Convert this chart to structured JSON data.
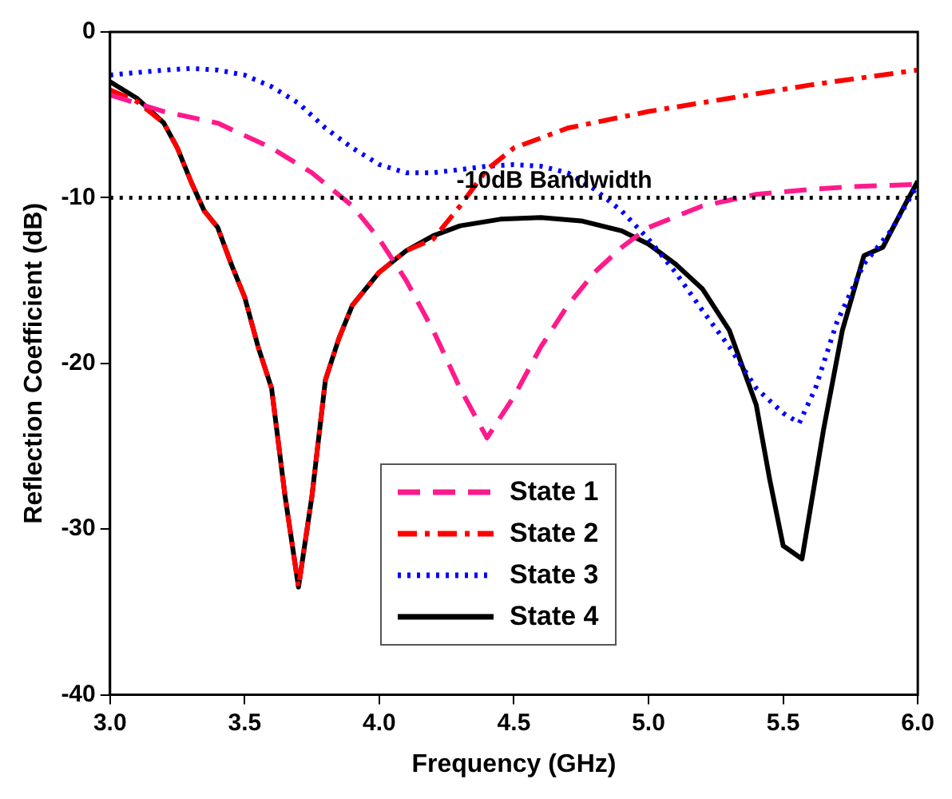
{
  "chart_data": {
    "type": "line",
    "xlabel": "Frequency (GHz)",
    "ylabel": "Reflection Coefficient (dB)",
    "xlim": [
      3,
      6
    ],
    "ylim": [
      -40,
      0
    ],
    "xticks": [
      {
        "value": 3,
        "label": "3.0"
      },
      {
        "value": 3.5,
        "label": "3.5"
      },
      {
        "value": 4,
        "label": "4.0"
      },
      {
        "value": 4.5,
        "label": "4.5"
      },
      {
        "value": 5,
        "label": "5.0"
      },
      {
        "value": 5.5,
        "label": "5.5"
      },
      {
        "value": 6,
        "label": "6.0"
      }
    ],
    "yticks": [
      -40,
      -30,
      -20,
      -10,
      0
    ],
    "grid": false,
    "legend": "bottom",
    "marker": "none",
    "ref_lines": [
      {
        "axis": "y",
        "value": -10,
        "label": "-10dB Bandwidth",
        "color": "#000000",
        "line_style": "dotted"
      }
    ],
    "series": [
      {
        "name": "State 1",
        "color": "#ff1a8c",
        "line_style": "dashed",
        "x": [
          3.0,
          3.2,
          3.4,
          3.6,
          3.75,
          3.9,
          4.0,
          4.1,
          4.2,
          4.3,
          4.4,
          4.5,
          4.6,
          4.7,
          4.8,
          4.9,
          5.0,
          5.2,
          5.4,
          5.6,
          5.8,
          6.0
        ],
        "values": [
          -3.8,
          -4.8,
          -5.5,
          -7,
          -8.5,
          -10.5,
          -12.5,
          -15,
          -18,
          -21.5,
          -24.5,
          -22,
          -19,
          -16.5,
          -14.5,
          -13,
          -11.8,
          -10.5,
          -9.8,
          -9.5,
          -9.3,
          -9.2
        ]
      },
      {
        "name": "State 2",
        "color": "#ff0000",
        "line_style": "dashdot",
        "x": [
          3.0,
          3.1,
          3.2,
          3.25,
          3.3,
          3.35,
          3.4,
          3.45,
          3.5,
          3.55,
          3.6,
          3.65,
          3.7,
          3.75,
          3.8,
          3.85,
          3.9,
          4.0,
          4.1,
          4.2,
          4.3,
          4.4,
          4.5,
          4.7,
          5.0,
          5.3,
          5.6,
          6.0
        ],
        "values": [
          -3.5,
          -4.2,
          -5.5,
          -7,
          -9,
          -10.8,
          -11.8,
          -14,
          -16,
          -19,
          -21.5,
          -28,
          -33.5,
          -28,
          -21,
          -18.5,
          -16.5,
          -14.5,
          -13.2,
          -12.5,
          -10.5,
          -8.3,
          -7,
          -5.8,
          -4.8,
          -4,
          -3.2,
          -2.3
        ]
      },
      {
        "name": "State 3",
        "color": "#0000ff",
        "line_style": "dotted",
        "x": [
          3.0,
          3.2,
          3.3,
          3.4,
          3.5,
          3.6,
          3.7,
          3.8,
          3.9,
          4.0,
          4.1,
          4.2,
          4.3,
          4.4,
          4.5,
          4.6,
          4.7,
          4.8,
          4.9,
          5.0,
          5.1,
          5.2,
          5.3,
          5.4,
          5.5,
          5.56,
          5.62,
          5.7,
          5.8,
          5.9,
          6.0
        ],
        "values": [
          -2.6,
          -2.3,
          -2.2,
          -2.3,
          -2.6,
          -3.3,
          -4.3,
          -5.8,
          -7,
          -8,
          -8.5,
          -8.5,
          -8.3,
          -8.1,
          -8,
          -8.1,
          -8.5,
          -9.5,
          -10.8,
          -12.5,
          -14.5,
          -16.8,
          -19,
          -21.5,
          -23,
          -23.6,
          -21.5,
          -17.5,
          -14,
          -12,
          -9.2
        ]
      },
      {
        "name": "State 4",
        "color": "#000000",
        "line_style": "solid",
        "x": [
          3.0,
          3.1,
          3.2,
          3.25,
          3.3,
          3.35,
          3.4,
          3.45,
          3.5,
          3.55,
          3.6,
          3.65,
          3.7,
          3.75,
          3.8,
          3.85,
          3.9,
          4.0,
          4.1,
          4.2,
          4.3,
          4.45,
          4.6,
          4.75,
          4.9,
          5.0,
          5.1,
          5.2,
          5.3,
          5.4,
          5.45,
          5.5,
          5.57,
          5.65,
          5.72,
          5.8,
          5.87,
          5.95,
          6.0
        ],
        "values": [
          -3,
          -4,
          -5.5,
          -7,
          -9,
          -10.8,
          -11.8,
          -14,
          -16,
          -19,
          -21.5,
          -28,
          -33.5,
          -28,
          -21,
          -18.5,
          -16.5,
          -14.5,
          -13.2,
          -12.3,
          -11.7,
          -11.3,
          -11.2,
          -11.4,
          -12,
          -12.8,
          -14,
          -15.5,
          -18,
          -22.5,
          -27,
          -31,
          -31.8,
          -24,
          -18,
          -13.5,
          -13,
          -10.5,
          -9
        ]
      }
    ]
  }
}
